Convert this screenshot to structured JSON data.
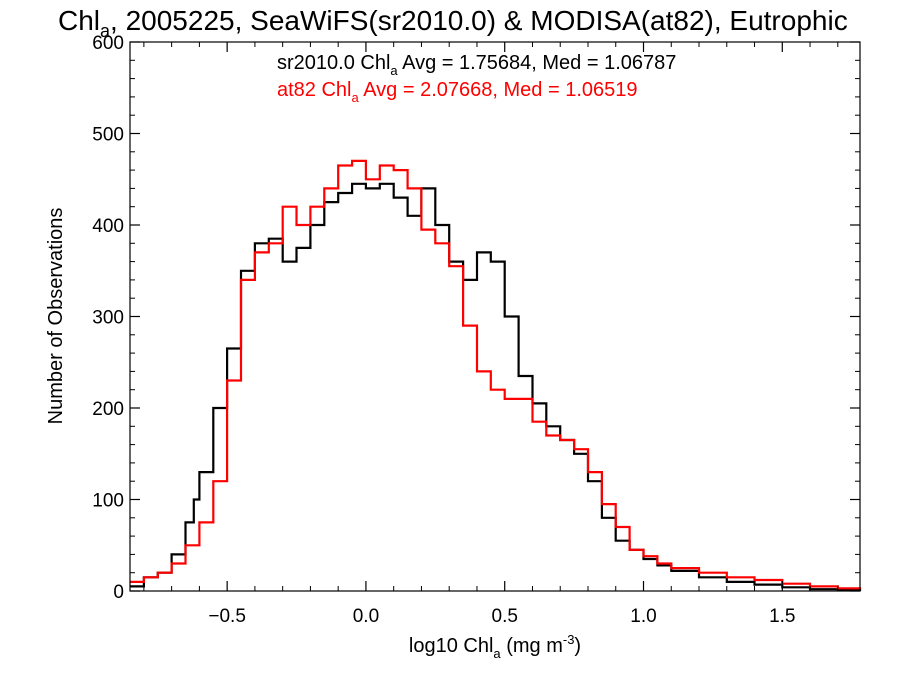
{
  "chart_data": {
    "type": "line",
    "title": {
      "pre": "Chl",
      "sub": "a",
      "post": ", 2005225, SeaWiFS(sr2010.0) & MODISA(at82), Eutrophic"
    },
    "xlabel": {
      "pre": "log10 Chl",
      "sub": "a",
      "mid": " (mg m",
      "sup": "-3",
      "post": ")"
    },
    "ylabel": "Number of Observations",
    "xlim": [
      -0.85,
      1.78
    ],
    "ylim": [
      0,
      600
    ],
    "xticks": [
      -0.5,
      0.0,
      0.5,
      1.0,
      1.5
    ],
    "xtick_labels": [
      "−0.5",
      "0.0",
      "0.5",
      "1.0",
      "1.5"
    ],
    "yticks": [
      0,
      100,
      200,
      300,
      400,
      500,
      600
    ],
    "ytick_labels": [
      "0",
      "100",
      "200",
      "300",
      "400",
      "500",
      "600"
    ],
    "grid": false,
    "annotations": [
      {
        "pre": "sr2010.0 Chl",
        "sub": "a",
        "post": " Avg = 1.75684, Med = 1.06787",
        "color": "#000000"
      },
      {
        "pre": "at82 Chl",
        "sub": "a",
        "post": " Avg = 2.07668, Med = 1.06519",
        "color": "#ff0000"
      }
    ],
    "series": [
      {
        "color": "#000000",
        "x": [
          -0.85,
          -0.8,
          -0.75,
          -0.7,
          -0.65,
          -0.62,
          -0.6,
          -0.55,
          -0.5,
          -0.45,
          -0.4,
          -0.35,
          -0.3,
          -0.25,
          -0.2,
          -0.15,
          -0.1,
          -0.05,
          0.0,
          0.05,
          0.1,
          0.15,
          0.2,
          0.25,
          0.3,
          0.35,
          0.4,
          0.45,
          0.5,
          0.55,
          0.6,
          0.65,
          0.7,
          0.75,
          0.8,
          0.85,
          0.9,
          0.95,
          1.0,
          1.05,
          1.1,
          1.2,
          1.3,
          1.4,
          1.5,
          1.6,
          1.7,
          1.78
        ],
        "y": [
          5,
          15,
          20,
          40,
          75,
          100,
          130,
          200,
          265,
          350,
          380,
          385,
          360,
          375,
          400,
          425,
          435,
          445,
          440,
          445,
          430,
          410,
          440,
          400,
          360,
          340,
          370,
          360,
          300,
          235,
          205,
          180,
          165,
          150,
          120,
          80,
          55,
          45,
          35,
          28,
          22,
          15,
          10,
          7,
          4,
          2,
          1,
          0
        ]
      },
      {
        "color": "#ff0000",
        "x": [
          -0.85,
          -0.8,
          -0.75,
          -0.7,
          -0.65,
          -0.6,
          -0.55,
          -0.5,
          -0.45,
          -0.4,
          -0.35,
          -0.3,
          -0.25,
          -0.2,
          -0.15,
          -0.1,
          -0.05,
          0.0,
          0.05,
          0.1,
          0.15,
          0.2,
          0.25,
          0.3,
          0.35,
          0.4,
          0.45,
          0.5,
          0.55,
          0.6,
          0.65,
          0.7,
          0.75,
          0.8,
          0.85,
          0.9,
          0.95,
          1.0,
          1.05,
          1.1,
          1.2,
          1.3,
          1.4,
          1.5,
          1.6,
          1.7,
          1.78
        ],
        "y": [
          10,
          15,
          20,
          30,
          50,
          75,
          120,
          230,
          340,
          370,
          380,
          420,
          400,
          420,
          440,
          465,
          470,
          450,
          465,
          460,
          440,
          395,
          380,
          355,
          290,
          240,
          220,
          210,
          210,
          185,
          170,
          165,
          155,
          130,
          95,
          70,
          45,
          38,
          30,
          25,
          20,
          15,
          12,
          8,
          5,
          3,
          2
        ]
      }
    ]
  }
}
